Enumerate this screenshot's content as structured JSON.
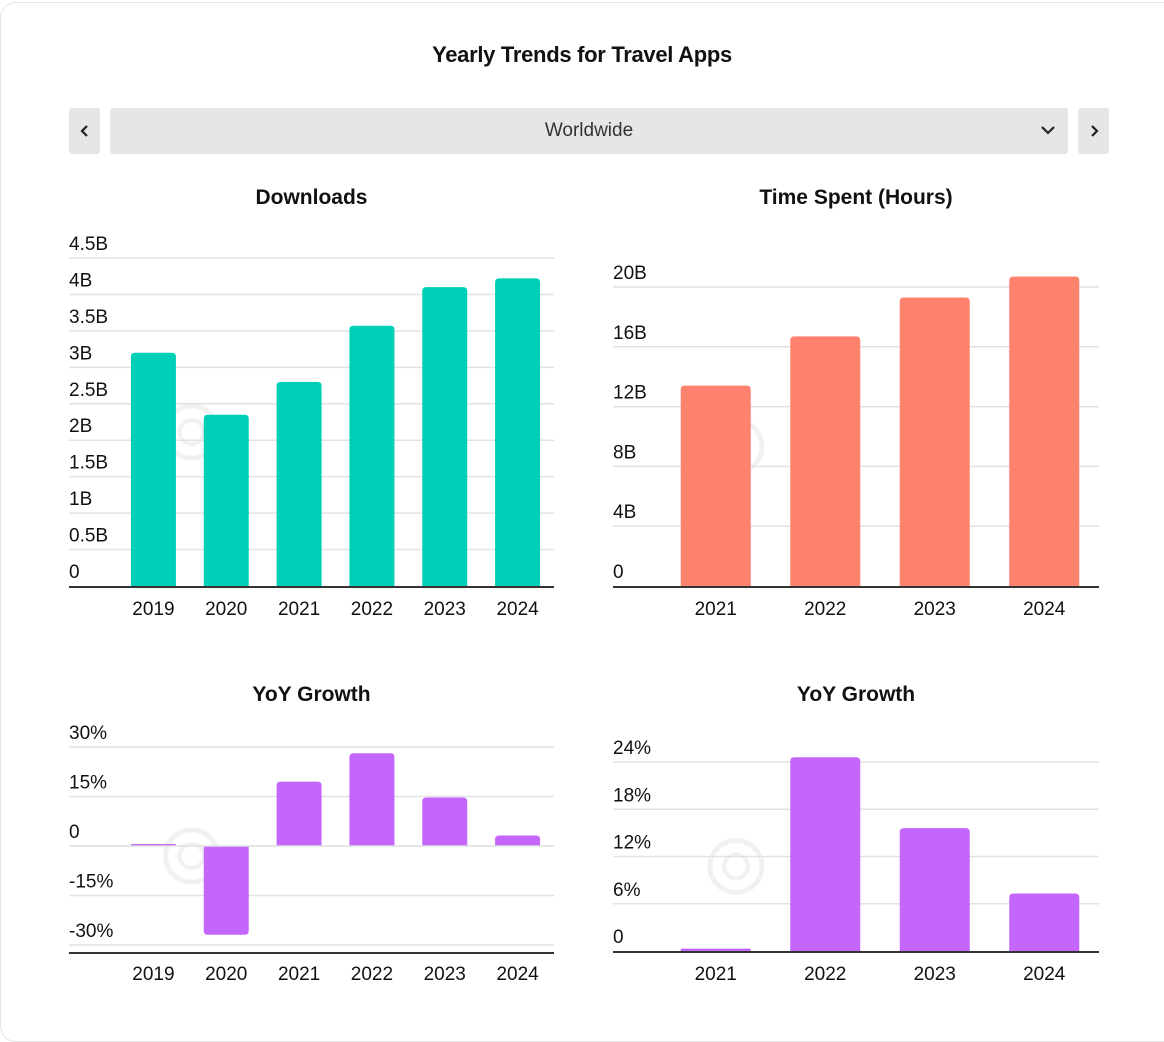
{
  "header": {
    "title": "Yearly Trends for Travel Apps",
    "region_selected": "Worldwide",
    "prev_icon": "chevron-left-icon",
    "next_icon": "chevron-right-icon",
    "dropdown_icon": "chevron-down-icon"
  },
  "colors": {
    "downloads": "#00CFB7",
    "time_spent": "#FF826E",
    "growth": "#C466FC",
    "grid": "#e2e2e2",
    "axis": "#333333"
  },
  "chart_data": [
    {
      "id": "downloads",
      "type": "bar",
      "title": "Downloads",
      "categories": [
        "2019",
        "2020",
        "2021",
        "2022",
        "2023",
        "2024"
      ],
      "values": [
        3.2,
        2.35,
        2.8,
        3.57,
        4.1,
        4.22
      ],
      "unit": "B",
      "ylim": [
        0,
        4.5
      ],
      "yticks": [
        0,
        0.5,
        1,
        1.5,
        2,
        2.5,
        3,
        3.5,
        4,
        4.5
      ],
      "ytick_labels": [
        "0",
        "0.5B",
        "1B",
        "1.5B",
        "2B",
        "2.5B",
        "3B",
        "3.5B",
        "4B",
        "4.5B"
      ],
      "grid": true,
      "xlabel": "",
      "ylabel": ""
    },
    {
      "id": "time_spent",
      "type": "bar",
      "title": "Time Spent (Hours)",
      "categories": [
        "2021",
        "2022",
        "2023",
        "2024"
      ],
      "values": [
        13.4,
        16.7,
        19.3,
        20.7
      ],
      "unit": "B",
      "ylim": [
        0,
        20
      ],
      "yticks": [
        0,
        4,
        8,
        12,
        16,
        20
      ],
      "ytick_labels": [
        "0",
        "4B",
        "8B",
        "12B",
        "16B",
        "20B"
      ],
      "grid": true,
      "xlabel": "",
      "ylabel": ""
    },
    {
      "id": "downloads_growth",
      "type": "bar",
      "title": "YoY Growth",
      "categories": [
        "2019",
        "2020",
        "2021",
        "2022",
        "2023",
        "2024"
      ],
      "values": [
        0.3,
        -26.9,
        19.5,
        28.1,
        14.7,
        3.2
      ],
      "unit": "%",
      "ylim": [
        -30,
        30
      ],
      "yticks": [
        -30,
        -15,
        0,
        15,
        30
      ],
      "ytick_labels": [
        "-30%",
        "-15%",
        "0",
        "15%",
        "30%"
      ],
      "grid": true,
      "xlabel": "",
      "ylabel": ""
    },
    {
      "id": "time_growth",
      "type": "bar",
      "title": "YoY Growth",
      "categories": [
        "2021",
        "2022",
        "2023",
        "2024"
      ],
      "values": [
        0.3,
        24.6,
        15.6,
        7.3
      ],
      "unit": "%",
      "ylim": [
        0,
        24
      ],
      "yticks": [
        0,
        6,
        12,
        18,
        24
      ],
      "ytick_labels": [
        "0",
        "6%",
        "12%",
        "18%",
        "24%"
      ],
      "grid": true,
      "xlabel": "",
      "ylabel": ""
    }
  ]
}
